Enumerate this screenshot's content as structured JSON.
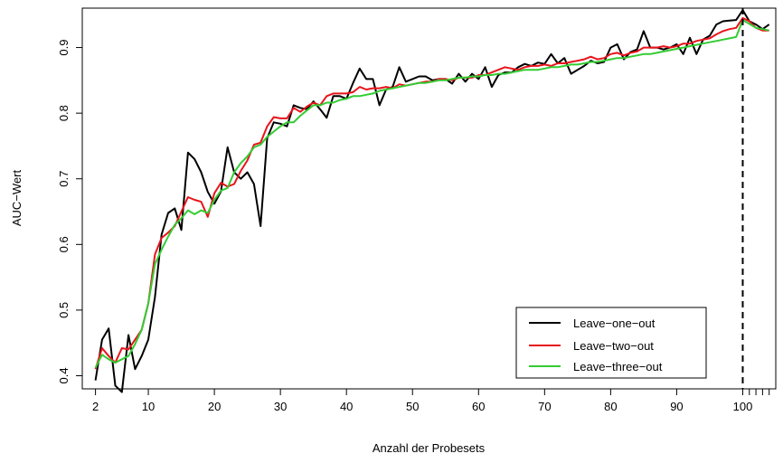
{
  "chart_data": {
    "type": "line",
    "xlabel": "Anzahl der Probesets",
    "ylabel": "AUC−Wert",
    "xlim": [
      0,
      105
    ],
    "ylim": [
      0.38,
      0.96
    ],
    "x_ticks": [
      2,
      10,
      20,
      30,
      40,
      50,
      60,
      70,
      80,
      90,
      100,
      101,
      102,
      103,
      104
    ],
    "x_tick_labels": [
      "2",
      "10",
      "20",
      "30",
      "40",
      "50",
      "60",
      "70",
      "80",
      "90",
      "100",
      "",
      "",
      "",
      ""
    ],
    "y_ticks": [
      0.4,
      0.5,
      0.6,
      0.7,
      0.8,
      0.9
    ],
    "y_tick_labels": [
      "0.4",
      "0.5",
      "0.6",
      "0.7",
      "0.8",
      "0.9"
    ],
    "vline": {
      "x": 100,
      "style": "dashed",
      "color": "#000000"
    },
    "legend": {
      "position": "bottom-right"
    },
    "grid": false,
    "series": [
      {
        "name": "Leave−one−out",
        "color": "#000000",
        "x": [
          2,
          3,
          4,
          5,
          6,
          7,
          8,
          9,
          10,
          11,
          12,
          13,
          14,
          15,
          16,
          17,
          18,
          19,
          20,
          21,
          22,
          23,
          24,
          25,
          26,
          27,
          28,
          29,
          30,
          31,
          32,
          33,
          34,
          35,
          36,
          37,
          38,
          39,
          40,
          41,
          42,
          43,
          44,
          45,
          46,
          47,
          48,
          49,
          50,
          51,
          52,
          53,
          54,
          55,
          56,
          57,
          58,
          59,
          60,
          61,
          62,
          63,
          64,
          65,
          66,
          67,
          68,
          69,
          70,
          71,
          72,
          73,
          74,
          75,
          76,
          77,
          78,
          79,
          80,
          81,
          82,
          83,
          84,
          85,
          86,
          87,
          88,
          89,
          90,
          91,
          92,
          93,
          94,
          95,
          96,
          97,
          98,
          99,
          100,
          101,
          102,
          103,
          104
        ],
        "y": [
          0.393,
          0.455,
          0.472,
          0.385,
          0.375,
          0.462,
          0.41,
          0.43,
          0.455,
          0.52,
          0.615,
          0.648,
          0.655,
          0.622,
          0.74,
          0.73,
          0.71,
          0.68,
          0.662,
          0.681,
          0.748,
          0.71,
          0.7,
          0.71,
          0.692,
          0.628,
          0.762,
          0.786,
          0.784,
          0.78,
          0.812,
          0.808,
          0.806,
          0.818,
          0.806,
          0.793,
          0.826,
          0.826,
          0.822,
          0.846,
          0.868,
          0.852,
          0.852,
          0.812,
          0.836,
          0.84,
          0.87,
          0.848,
          0.852,
          0.856,
          0.856,
          0.85,
          0.852,
          0.852,
          0.845,
          0.86,
          0.848,
          0.86,
          0.852,
          0.87,
          0.84,
          0.858,
          0.862,
          0.862,
          0.87,
          0.875,
          0.872,
          0.877,
          0.875,
          0.89,
          0.876,
          0.884,
          0.86,
          0.866,
          0.872,
          0.88,
          0.876,
          0.878,
          0.9,
          0.905,
          0.882,
          0.893,
          0.897,
          0.925,
          0.9,
          0.9,
          0.897,
          0.9,
          0.905,
          0.89,
          0.915,
          0.89,
          0.912,
          0.918,
          0.935,
          0.94,
          0.941,
          0.942,
          0.957,
          0.94,
          0.935,
          0.928,
          0.935
        ]
      },
      {
        "name": "Leave−two−out",
        "color": "#e8141b",
        "x": [
          2,
          3,
          4,
          5,
          6,
          7,
          8,
          9,
          10,
          11,
          12,
          13,
          14,
          15,
          16,
          17,
          18,
          19,
          20,
          21,
          22,
          23,
          24,
          25,
          26,
          27,
          28,
          29,
          30,
          31,
          32,
          33,
          34,
          35,
          36,
          37,
          38,
          39,
          40,
          41,
          42,
          43,
          44,
          45,
          46,
          47,
          48,
          49,
          50,
          51,
          52,
          53,
          54,
          55,
          56,
          57,
          58,
          59,
          60,
          61,
          62,
          63,
          64,
          65,
          66,
          67,
          68,
          69,
          70,
          71,
          72,
          73,
          74,
          75,
          76,
          77,
          78,
          79,
          80,
          81,
          82,
          83,
          84,
          85,
          86,
          87,
          88,
          89,
          90,
          91,
          92,
          93,
          94,
          95,
          96,
          97,
          98,
          99,
          100,
          101,
          102,
          103,
          104
        ],
        "y": [
          0.41,
          0.442,
          0.43,
          0.42,
          0.442,
          0.44,
          0.455,
          0.47,
          0.51,
          0.585,
          0.61,
          0.618,
          0.628,
          0.65,
          0.672,
          0.668,
          0.665,
          0.642,
          0.678,
          0.694,
          0.688,
          0.692,
          0.712,
          0.728,
          0.752,
          0.755,
          0.78,
          0.794,
          0.792,
          0.792,
          0.808,
          0.802,
          0.81,
          0.816,
          0.812,
          0.826,
          0.83,
          0.83,
          0.83,
          0.832,
          0.84,
          0.836,
          0.838,
          0.838,
          0.84,
          0.838,
          0.844,
          0.842,
          0.844,
          0.846,
          0.848,
          0.848,
          0.852,
          0.852,
          0.85,
          0.854,
          0.854,
          0.854,
          0.858,
          0.858,
          0.862,
          0.866,
          0.87,
          0.868,
          0.866,
          0.87,
          0.872,
          0.872,
          0.874,
          0.872,
          0.876,
          0.876,
          0.878,
          0.88,
          0.882,
          0.886,
          0.882,
          0.884,
          0.89,
          0.892,
          0.888,
          0.892,
          0.894,
          0.9,
          0.9,
          0.9,
          0.902,
          0.9,
          0.902,
          0.906,
          0.906,
          0.91,
          0.912,
          0.914,
          0.92,
          0.925,
          0.928,
          0.93,
          0.945,
          0.94,
          0.93,
          0.926,
          0.926
        ]
      },
      {
        "name": "Leave−three−out",
        "color": "#33cc33",
        "x": [
          2,
          3,
          4,
          5,
          6,
          7,
          8,
          9,
          10,
          11,
          12,
          13,
          14,
          15,
          16,
          17,
          18,
          19,
          20,
          21,
          22,
          23,
          24,
          25,
          26,
          27,
          28,
          29,
          30,
          31,
          32,
          33,
          34,
          35,
          36,
          37,
          38,
          39,
          40,
          41,
          42,
          43,
          44,
          45,
          46,
          47,
          48,
          49,
          50,
          51,
          52,
          53,
          54,
          55,
          56,
          57,
          58,
          59,
          60,
          61,
          62,
          63,
          64,
          65,
          66,
          67,
          68,
          69,
          70,
          71,
          72,
          73,
          74,
          75,
          76,
          77,
          78,
          79,
          80,
          81,
          82,
          83,
          84,
          85,
          86,
          87,
          88,
          89,
          90,
          91,
          92,
          93,
          94,
          95,
          96,
          97,
          98,
          99,
          100,
          101,
          102,
          103,
          104
        ],
        "y": [
          0.412,
          0.432,
          0.425,
          0.42,
          0.425,
          0.43,
          0.448,
          0.47,
          0.51,
          0.57,
          0.592,
          0.612,
          0.63,
          0.64,
          0.652,
          0.646,
          0.652,
          0.648,
          0.668,
          0.682,
          0.686,
          0.71,
          0.724,
          0.734,
          0.748,
          0.752,
          0.764,
          0.772,
          0.78,
          0.786,
          0.786,
          0.796,
          0.804,
          0.812,
          0.812,
          0.816,
          0.816,
          0.82,
          0.822,
          0.826,
          0.826,
          0.828,
          0.83,
          0.834,
          0.836,
          0.838,
          0.84,
          0.842,
          0.844,
          0.846,
          0.846,
          0.848,
          0.85,
          0.85,
          0.852,
          0.854,
          0.854,
          0.856,
          0.856,
          0.858,
          0.858,
          0.86,
          0.86,
          0.862,
          0.864,
          0.866,
          0.866,
          0.866,
          0.868,
          0.87,
          0.87,
          0.872,
          0.874,
          0.874,
          0.876,
          0.878,
          0.878,
          0.88,
          0.882,
          0.884,
          0.884,
          0.886,
          0.888,
          0.89,
          0.89,
          0.892,
          0.894,
          0.896,
          0.898,
          0.9,
          0.902,
          0.904,
          0.906,
          0.908,
          0.91,
          0.912,
          0.914,
          0.916,
          0.942,
          0.936,
          0.93,
          0.928,
          0.926
        ]
      }
    ]
  }
}
